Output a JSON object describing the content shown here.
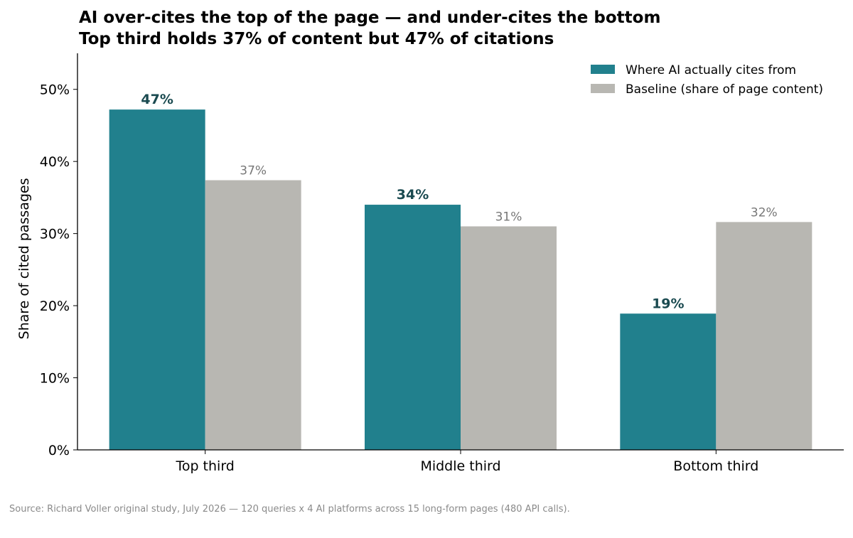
{
  "title": "AI over-cites the top of the page — and under-cites the bottom",
  "subtitle": "Top third holds 37% of content but 47% of citations",
  "source": "Source: Richard Voller original study, July 2026 — 120 queries x 4 AI platforms across 15 long-form pages (480 API calls).",
  "colors": {
    "cited": "#21808d",
    "baseline": "#b8b7b2",
    "cited_label": "#1a4a50",
    "baseline_label": "#777777"
  },
  "chart_data": {
    "type": "bar",
    "categories": [
      "Top third",
      "Middle third",
      "Bottom third"
    ],
    "series": [
      {
        "name": "Where AI actually cites from",
        "values": [
          47.2,
          34.0,
          18.9
        ],
        "labels": [
          "47%",
          "34%",
          "19%"
        ]
      },
      {
        "name": "Baseline (share of page content)",
        "values": [
          37.4,
          31.0,
          31.6
        ],
        "labels": [
          "37%",
          "31%",
          "32%"
        ]
      }
    ],
    "ylabel": "Share of cited passages",
    "ylim": [
      0,
      55
    ],
    "yticks": [
      0,
      10,
      20,
      30,
      40,
      50
    ],
    "ytick_labels": [
      "0%",
      "10%",
      "20%",
      "30%",
      "40%",
      "50%"
    ],
    "legend": "top-right",
    "grid": false
  }
}
